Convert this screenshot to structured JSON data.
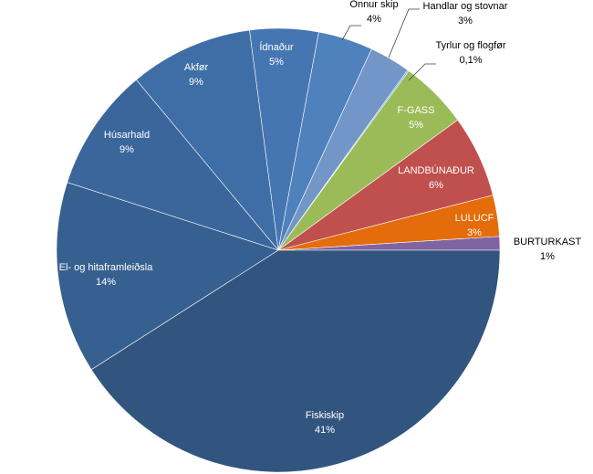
{
  "chart_data": {
    "type": "pie",
    "title": "",
    "slices": [
      {
        "label": "BURTURKAST",
        "pct_label": "1%",
        "value": 1,
        "color": "#8064a2"
      },
      {
        "label": "LULUCF",
        "pct_label": "3%",
        "value": 3,
        "color": "#e46c0a"
      },
      {
        "label": "LANDBÚNAÐUR",
        "pct_label": "6%",
        "value": 6,
        "color": "#c0504d"
      },
      {
        "label": "F-GASS",
        "pct_label": "5%",
        "value": 5,
        "color": "#9bbb59"
      },
      {
        "label": "Tyrlur og flogfør",
        "pct_label": "0,1%",
        "value": 0.1,
        "color": "#4bacc6"
      },
      {
        "label": "Handlar og stovnar",
        "pct_label": "3%",
        "value": 3,
        "color": "#7396c8"
      },
      {
        "label": "Onnur skip",
        "pct_label": "4%",
        "value": 4,
        "color": "#4f81bd"
      },
      {
        "label": "Ídnaður",
        "pct_label": "5%",
        "value": 5,
        "color": "#4676b2"
      },
      {
        "label": "Akfør",
        "pct_label": "9%",
        "value": 9,
        "color": "#3f6ea6"
      },
      {
        "label": "Húsarhald",
        "pct_label": "9%",
        "value": 9,
        "color": "#3b669b"
      },
      {
        "label": "El- og hitaframleiðsla",
        "pct_label": "14%",
        "value": 14,
        "color": "#36608f"
      },
      {
        "label": "Fiskiskip",
        "pct_label": "41%",
        "value": 41,
        "color": "#31557f"
      }
    ]
  }
}
